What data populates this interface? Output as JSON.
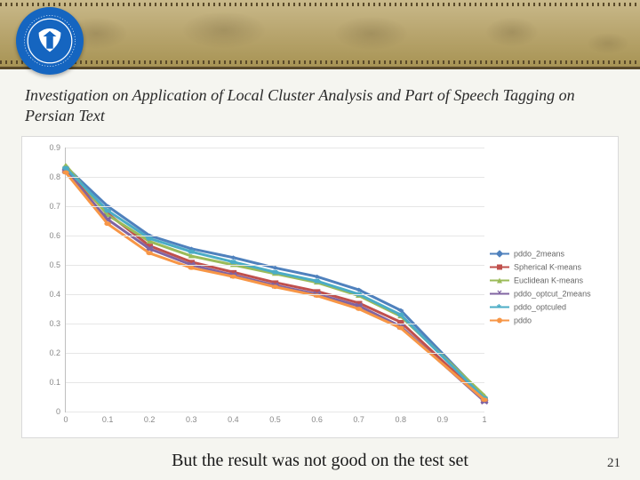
{
  "header": {
    "band_gradient": [
      "#c9b98a",
      "#b8a56e",
      "#a89455"
    ],
    "border_color": "#5a4a2a",
    "logo_bg": "#1565c0",
    "logo_fg": "#ffffff"
  },
  "title": "Investigation on Application of Local Cluster Analysis and Part of Speech Tagging on Persian Text",
  "title_fontsize": 18,
  "title_italic": true,
  "chart": {
    "type": "line",
    "background_color": "#ffffff",
    "grid_color": "#e6e6e6",
    "axis_color": "#bfbfbf",
    "tick_color": "#888888",
    "tick_fontsize": 9,
    "xlim": [
      0,
      1
    ],
    "ylim": [
      0,
      0.9
    ],
    "xtick_step": 0.1,
    "ytick_step": 0.1,
    "xticks": [
      "0",
      "0.1",
      "0.2",
      "0.3",
      "0.4",
      "0.5",
      "0.6",
      "0.7",
      "0.8",
      "0.9",
      "1"
    ],
    "yticks": [
      "0",
      "0.1",
      "0.2",
      "0.3",
      "0.4",
      "0.5",
      "0.6",
      "0.7",
      "0.8",
      "0.9"
    ],
    "x": [
      0,
      0.1,
      0.2,
      0.3,
      0.4,
      0.5,
      0.6,
      0.7,
      0.8,
      1
    ],
    "series": [
      {
        "name": "pddo_2means",
        "color": "#4f81bd",
        "marker": "diamond",
        "y": [
          0.835,
          0.7,
          0.6,
          0.555,
          0.525,
          0.49,
          0.46,
          0.415,
          0.345,
          0.05
        ]
      },
      {
        "name": "Spherical K-means",
        "color": "#c0504d",
        "marker": "square",
        "y": [
          0.825,
          0.675,
          0.565,
          0.51,
          0.475,
          0.44,
          0.41,
          0.37,
          0.305,
          0.04
        ]
      },
      {
        "name": "Euclidean K-means",
        "color": "#9bbb59",
        "marker": "triangle",
        "y": [
          0.84,
          0.67,
          0.58,
          0.53,
          0.5,
          0.47,
          0.44,
          0.395,
          0.325,
          0.055
        ]
      },
      {
        "name": "pddo_optcut_2means",
        "color": "#8064a2",
        "marker": "x",
        "y": [
          0.82,
          0.655,
          0.555,
          0.5,
          0.465,
          0.43,
          0.4,
          0.36,
          0.29,
          0.035
        ]
      },
      {
        "name": "pddo_optculed",
        "color": "#4bacc6",
        "marker": "asterisk",
        "y": [
          0.83,
          0.685,
          0.59,
          0.545,
          0.51,
          0.475,
          0.445,
          0.4,
          0.33,
          0.045
        ]
      },
      {
        "name": "pddo",
        "color": "#f79646",
        "marker": "circle",
        "y": [
          0.815,
          0.64,
          0.54,
          0.49,
          0.46,
          0.425,
          0.395,
          0.35,
          0.285,
          0.04
        ]
      }
    ],
    "line_width": 1,
    "marker_size": 5,
    "legend_position": "right",
    "legend_fontsize": 9
  },
  "caption": "But the result was not good on the test set",
  "caption_fontsize": 20,
  "page_number": "21"
}
